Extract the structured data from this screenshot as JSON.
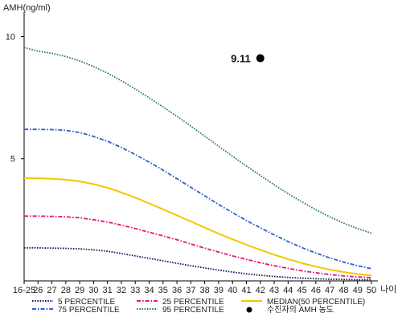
{
  "chart_data": {
    "type": "line",
    "ylabel": "AMH(ng/ml)",
    "xlabel": "나이",
    "categories": [
      "16-25",
      "26",
      "27",
      "28",
      "29",
      "30",
      "31",
      "32",
      "33",
      "34",
      "35",
      "36",
      "37",
      "38",
      "39",
      "40",
      "41",
      "42",
      "43",
      "44",
      "45",
      "46",
      "47",
      "48",
      "49",
      "50"
    ],
    "ylim": [
      0,
      11
    ],
    "yticks": [
      5,
      10
    ],
    "grid": false,
    "legend_position": "bottom",
    "series": [
      {
        "name": "5 PERCENTILE",
        "color": "#101a5a",
        "style": "dotted",
        "values": [
          1.35,
          1.35,
          1.34,
          1.33,
          1.31,
          1.27,
          1.21,
          1.12,
          1.02,
          0.92,
          0.82,
          0.72,
          0.62,
          0.53,
          0.44,
          0.36,
          0.29,
          0.23,
          0.18,
          0.14,
          0.11,
          0.09,
          0.07,
          0.06,
          0.05,
          0.05
        ]
      },
      {
        "name": "25 PERCENTILE",
        "color": "#e0157a",
        "style": "dashdot",
        "values": [
          2.65,
          2.65,
          2.64,
          2.62,
          2.58,
          2.5,
          2.41,
          2.28,
          2.14,
          1.99,
          1.84,
          1.68,
          1.51,
          1.34,
          1.18,
          1.02,
          0.88,
          0.74,
          0.62,
          0.51,
          0.41,
          0.33,
          0.26,
          0.2,
          0.16,
          0.13
        ]
      },
      {
        "name": "MEDIAN(50 PERCENTILE)",
        "color": "#f0c800",
        "style": "solid",
        "values": [
          4.2,
          4.2,
          4.18,
          4.14,
          4.07,
          3.96,
          3.81,
          3.62,
          3.41,
          3.17,
          2.93,
          2.68,
          2.43,
          2.18,
          1.93,
          1.7,
          1.48,
          1.27,
          1.07,
          0.89,
          0.73,
          0.58,
          0.46,
          0.36,
          0.28,
          0.22
        ]
      },
      {
        "name": "75 PERCENTILE",
        "color": "#2f5fc8",
        "style": "dashdot",
        "values": [
          6.2,
          6.2,
          6.19,
          6.16,
          6.07,
          5.91,
          5.71,
          5.46,
          5.17,
          4.86,
          4.53,
          4.18,
          3.83,
          3.48,
          3.13,
          2.79,
          2.47,
          2.17,
          1.88,
          1.61,
          1.36,
          1.14,
          0.94,
          0.77,
          0.62,
          0.5
        ]
      },
      {
        "name": "95 PERCENTILE",
        "color": "#2e7d4a",
        "style": "dotted",
        "values": [
          9.55,
          9.4,
          9.31,
          9.18,
          9.0,
          8.77,
          8.5,
          8.19,
          7.85,
          7.49,
          7.12,
          6.73,
          6.33,
          5.92,
          5.51,
          5.1,
          4.7,
          4.31,
          3.93,
          3.57,
          3.23,
          2.91,
          2.62,
          2.36,
          2.14,
          1.95
        ]
      }
    ],
    "patient": {
      "name": "수진자의 AMH 농도",
      "category": "42",
      "value": 9.11,
      "label": "9.11",
      "color": "#000000"
    }
  }
}
